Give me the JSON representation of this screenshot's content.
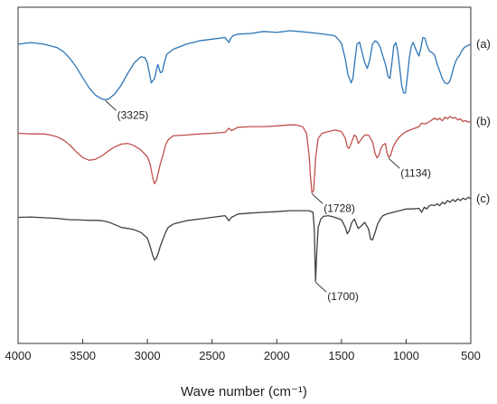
{
  "chart_data": {
    "type": "line",
    "title": "",
    "xlabel": "Wave number (cm⁻¹)",
    "ylabel": "",
    "xlim": [
      4000,
      500
    ],
    "x_reversed": true,
    "ylim": [
      0,
      100
    ],
    "grid": false,
    "legend": "none",
    "xticks": [
      "4000",
      "3500",
      "3000",
      "2500",
      "2000",
      "1500",
      "1000",
      "500"
    ],
    "series": [
      {
        "name": "(a)",
        "color": "#2E75B6",
        "x": [
          4000,
          3900,
          3800,
          3700,
          3650,
          3600,
          3550,
          3500,
          3450,
          3400,
          3350,
          3325,
          3300,
          3250,
          3200,
          3150,
          3100,
          3050,
          3020,
          3000,
          2970,
          2945,
          2920,
          2900,
          2885,
          2870,
          2850,
          2800,
          2700,
          2600,
          2500,
          2400,
          2370,
          2360,
          2340,
          2300,
          2200,
          2100,
          2000,
          1900,
          1800,
          1700,
          1600,
          1550,
          1500,
          1470,
          1450,
          1425,
          1410,
          1395,
          1380,
          1360,
          1340,
          1320,
          1300,
          1280,
          1260,
          1240,
          1220,
          1200,
          1180,
          1160,
          1140,
          1125,
          1110,
          1095,
          1080,
          1065,
          1050,
          1035,
          1020,
          1005,
          990,
          975,
          960,
          945,
          930,
          915,
          900,
          885,
          870,
          855,
          840,
          820,
          800,
          780,
          760,
          740,
          720,
          700,
          680,
          665,
          650,
          630,
          610,
          590,
          570,
          550,
          530,
          500
        ],
        "y": [
          89,
          89.5,
          89,
          88,
          86.8,
          84.8,
          82.2,
          79,
          76,
          73.8,
          72.7,
          72.5,
          72.7,
          74.3,
          77,
          80.5,
          83.5,
          85.3,
          85,
          83.5,
          77.5,
          78.8,
          83,
          80.5,
          80.8,
          83.5,
          86,
          87.5,
          89,
          90,
          90.5,
          91,
          89.5,
          90.5,
          91.5,
          92,
          92.2,
          92.8,
          92.5,
          93,
          92.7,
          92.3,
          91.8,
          91.5,
          89.3,
          84.5,
          80,
          77.5,
          79,
          84.5,
          89,
          89.6,
          86.5,
          83.5,
          81.8,
          84.5,
          89,
          90,
          89.5,
          88,
          85.5,
          83,
          79.5,
          78.8,
          83.5,
          88.5,
          89.5,
          87,
          82,
          77,
          74.5,
          74.5,
          79.5,
          85,
          88.5,
          89.5,
          88,
          86.5,
          85.5,
          88,
          91,
          90.8,
          88.8,
          87,
          86.5,
          85.8,
          83,
          81,
          78.8,
          77.5,
          77.2,
          77.8,
          79.5,
          82.5,
          84.5,
          85.5,
          87,
          88,
          88.5,
          89
        ]
      },
      {
        "name": "(b)",
        "color": "#C0504D",
        "x": [
          4000,
          3900,
          3800,
          3750,
          3700,
          3650,
          3600,
          3550,
          3500,
          3450,
          3400,
          3350,
          3300,
          3250,
          3200,
          3150,
          3100,
          3050,
          3000,
          2980,
          2960,
          2945,
          2930,
          2915,
          2900,
          2880,
          2860,
          2840,
          2800,
          2700,
          2600,
          2500,
          2400,
          2370,
          2350,
          2300,
          2200,
          2100,
          2000,
          1900,
          1850,
          1800,
          1770,
          1750,
          1740,
          1728,
          1715,
          1700,
          1680,
          1650,
          1600,
          1550,
          1500,
          1470,
          1455,
          1440,
          1420,
          1400,
          1385,
          1370,
          1350,
          1320,
          1290,
          1260,
          1240,
          1225,
          1210,
          1195,
          1180,
          1160,
          1150,
          1134,
          1120,
          1100,
          1080,
          1050,
          1020,
          1000,
          980,
          950,
          920,
          900,
          880,
          850,
          820,
          800,
          780,
          760,
          740,
          720,
          700,
          680,
          660,
          640,
          620,
          600,
          580,
          560,
          540,
          520,
          500
        ],
        "y": [
          62.5,
          62.3,
          62.3,
          62,
          61.5,
          60.5,
          59,
          57,
          55.3,
          54.5,
          54.8,
          55.8,
          57.3,
          58.5,
          59.3,
          59.5,
          58.8,
          57.5,
          55.5,
          53.5,
          49.5,
          47.5,
          48.5,
          51,
          53.5,
          56,
          59,
          60.5,
          61.8,
          62,
          62.3,
          62.5,
          62.8,
          64,
          63.3,
          64.3,
          64.5,
          64.5,
          64.7,
          65,
          65,
          64.5,
          62.5,
          56,
          50,
          44.8,
          45.5,
          55,
          61,
          62.5,
          63,
          63.5,
          63,
          61,
          58.5,
          58,
          60,
          62,
          61.5,
          59.5,
          60.5,
          62,
          62,
          60,
          56.5,
          55.2,
          56,
          58,
          59,
          59.5,
          57,
          55.3,
          56,
          58.5,
          60,
          61.5,
          62.5,
          63,
          63.3,
          63.8,
          64.2,
          64.5,
          65.5,
          65.3,
          66,
          66.5,
          67,
          66.5,
          67,
          66.2,
          67.3,
          66.8,
          67.5,
          67,
          67.2,
          66.5,
          66.8,
          66,
          66.3,
          65.8,
          66
        ]
      },
      {
        "name": "(c)",
        "color": "#404040",
        "x": [
          4000,
          3900,
          3800,
          3700,
          3650,
          3600,
          3550,
          3500,
          3450,
          3400,
          3350,
          3300,
          3250,
          3200,
          3150,
          3100,
          3050,
          3000,
          2980,
          2960,
          2945,
          2930,
          2915,
          2900,
          2880,
          2860,
          2840,
          2800,
          2700,
          2600,
          2500,
          2400,
          2370,
          2350,
          2300,
          2200,
          2100,
          2000,
          1900,
          1800,
          1750,
          1720,
          1710,
          1700,
          1690,
          1680,
          1660,
          1640,
          1600,
          1550,
          1500,
          1470,
          1455,
          1440,
          1420,
          1400,
          1385,
          1370,
          1350,
          1320,
          1290,
          1275,
          1260,
          1240,
          1220,
          1200,
          1180,
          1150,
          1100,
          1050,
          1000,
          950,
          900,
          880,
          860,
          840,
          820,
          800,
          780,
          760,
          740,
          720,
          700,
          680,
          660,
          640,
          620,
          600,
          580,
          560,
          540,
          520,
          500
        ],
        "y": [
          37.5,
          37.6,
          37.4,
          37.2,
          37,
          36.8,
          36.8,
          36.7,
          36.6,
          36.6,
          36.5,
          36.1,
          35.3,
          34.5,
          34.2,
          33.8,
          33,
          31.3,
          29,
          26.3,
          24.8,
          25.5,
          27,
          29,
          31,
          33,
          34.5,
          35.5,
          36.5,
          37,
          37.5,
          38,
          36.5,
          37.5,
          38.5,
          38.8,
          39,
          39.2,
          39.5,
          39.5,
          39.5,
          39,
          34,
          18.5,
          28,
          34.5,
          37,
          37.8,
          38,
          37.5,
          36.8,
          34.5,
          32.6,
          33.5,
          36,
          37,
          35.5,
          34.2,
          34.8,
          36,
          34,
          31,
          30.8,
          33,
          35.5,
          37,
          38,
          38.5,
          39,
          39.5,
          40,
          40,
          40.2,
          39,
          40.5,
          40,
          41,
          41.2,
          41,
          41.5,
          41,
          42,
          41.5,
          42.5,
          42,
          42.8,
          42.2,
          43,
          42.5,
          43.2,
          42.8,
          43.5,
          43
        ]
      }
    ],
    "annotations": [
      {
        "series": 0,
        "x": 3325,
        "label": "(3325)"
      },
      {
        "series": 1,
        "x": 1728,
        "label": "(1728)"
      },
      {
        "series": 1,
        "x": 1134,
        "label": "(1134)"
      },
      {
        "series": 2,
        "x": 1700,
        "label": "(1700)"
      }
    ]
  }
}
